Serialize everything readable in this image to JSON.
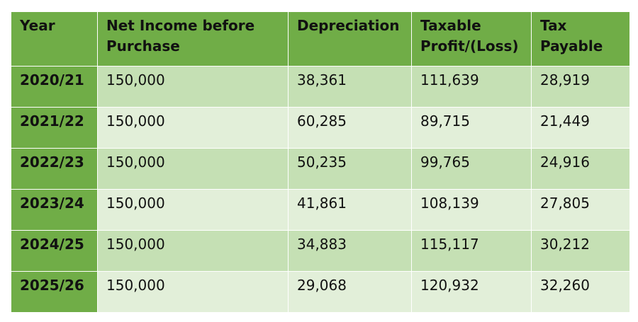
{
  "table": {
    "headers": [
      "Year",
      "Net Income before Purchase",
      "Depreciation",
      "Taxable Profit/(Loss)",
      "Tax Payable"
    ],
    "rows": [
      [
        "2020/21",
        "150,000",
        "38,361",
        "111,639",
        "28,919"
      ],
      [
        "2021/22",
        "150,000",
        "60,285",
        "89,715",
        "21,449"
      ],
      [
        "2022/23",
        "150,000",
        "50,235",
        "99,765",
        "24,916"
      ],
      [
        "2023/24",
        "150,000",
        "41,861",
        "108,139",
        "27,805"
      ],
      [
        "2024/25",
        "150,000",
        "34,883",
        "115,117",
        "30,212"
      ],
      [
        "2025/26",
        "150,000",
        "29,068",
        "120,932",
        "32,260"
      ]
    ]
  },
  "colors": {
    "header_bg": "#70ad47",
    "row_odd_bg": "#c5e0b4",
    "row_even_bg": "#e2efd9"
  }
}
